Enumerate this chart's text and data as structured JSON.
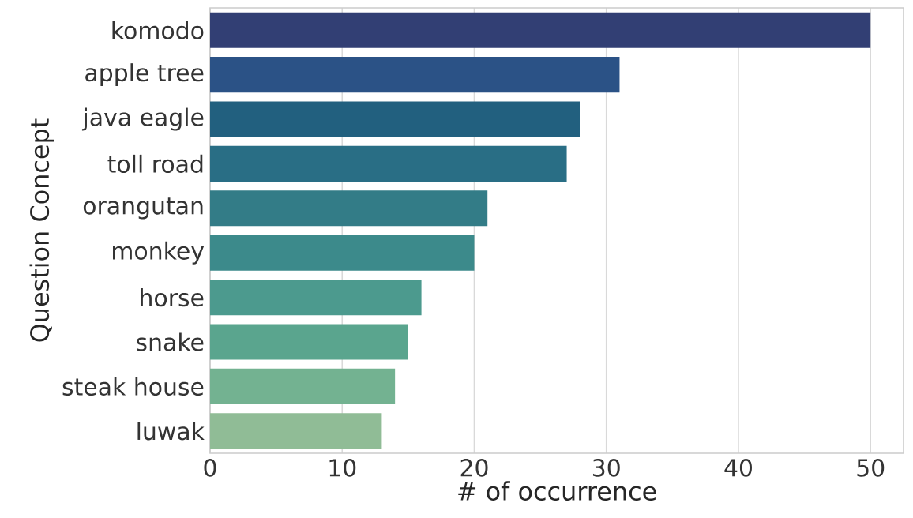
{
  "chart_data": {
    "type": "bar",
    "orientation": "horizontal",
    "xlabel": "# of occurrence",
    "ylabel": "Question Concept",
    "categories": [
      "komodo",
      "apple tree",
      "java eagle",
      "toll road",
      "orangutan",
      "monkey",
      "horse",
      "snake",
      "steak house",
      "luwak"
    ],
    "values": [
      50,
      31,
      28,
      27,
      21,
      20,
      16,
      15,
      14,
      13
    ],
    "colors": [
      "#323f74",
      "#2b5286",
      "#22607f",
      "#296e85",
      "#337c87",
      "#3c8a8b",
      "#4c9a8e",
      "#5aa58e",
      "#73b291",
      "#90bc96"
    ],
    "xlim": [
      0,
      52.5
    ],
    "xticks": [
      0,
      10,
      20,
      30,
      40,
      50
    ],
    "grid": "x"
  }
}
